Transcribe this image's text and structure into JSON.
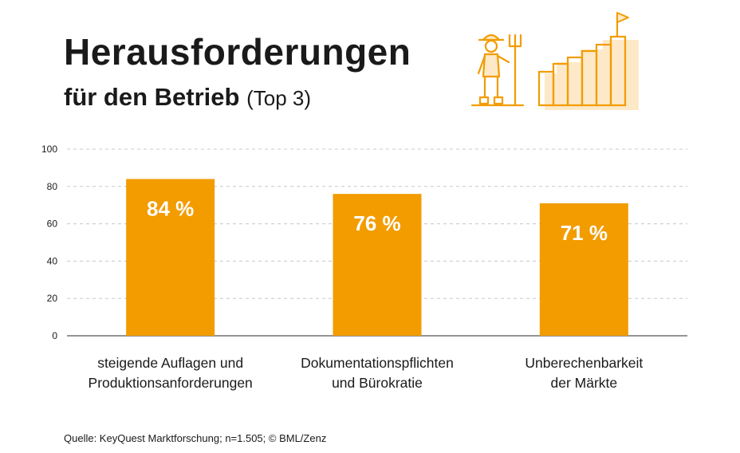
{
  "header": {
    "title": "Herausforderungen",
    "subtitle": "für den Betrieb",
    "subtitle_suffix": "(Top 3)"
  },
  "illustration": {
    "farmer": "farmer-with-pitchfork-icon",
    "stairs": "rising-stairs-with-flag-icon",
    "accent": "#f29c00",
    "accent_light": "#fde9c8"
  },
  "chart_data": {
    "type": "bar",
    "title": "Herausforderungen für den Betrieb (Top 3)",
    "categories": [
      [
        "steigende Auflagen und",
        "Produktionsanforderungen"
      ],
      [
        "Dokumentationspflichten",
        "und Bürokratie"
      ],
      [
        "Unberechenbarkeit",
        "der Märkte"
      ]
    ],
    "values": [
      84,
      76,
      71
    ],
    "value_labels": [
      "84 %",
      "76 %",
      "71 %"
    ],
    "yticks": [
      0,
      20,
      40,
      60,
      80,
      100
    ],
    "ylim": [
      0,
      100
    ],
    "grid": true,
    "bar_color": "#f29c00",
    "xlabel": "",
    "ylabel": ""
  },
  "footer": {
    "source": "Quelle: KeyQuest Marktforschung; n=1.505;  © BML/Zenz"
  }
}
